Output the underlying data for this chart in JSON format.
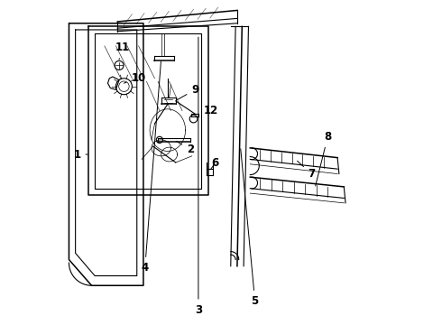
{
  "bg_color": "#ffffff",
  "line_color": "#000000",
  "figsize": [
    4.9,
    3.6
  ],
  "dpi": 100,
  "label_positions": {
    "1": [
      0.06,
      0.52,
      0.13,
      0.52
    ],
    "2": [
      0.4,
      0.575,
      0.36,
      0.575
    ],
    "3": [
      0.43,
      0.045,
      0.43,
      0.88
    ],
    "4": [
      0.28,
      0.175,
      0.315,
      0.8
    ],
    "5": [
      0.6,
      0.072,
      0.6,
      0.86
    ],
    "6": [
      0.48,
      0.5,
      0.48,
      0.44
    ],
    "7": [
      0.78,
      0.46,
      0.72,
      0.49
    ],
    "8": [
      0.82,
      0.6,
      0.78,
      0.57
    ],
    "9": [
      0.42,
      0.74,
      0.35,
      0.69
    ],
    "10": [
      0.25,
      0.76,
      0.2,
      0.76
    ],
    "11": [
      0.2,
      0.86,
      0.17,
      0.82
    ],
    "12": [
      0.47,
      0.66,
      0.43,
      0.63
    ]
  }
}
